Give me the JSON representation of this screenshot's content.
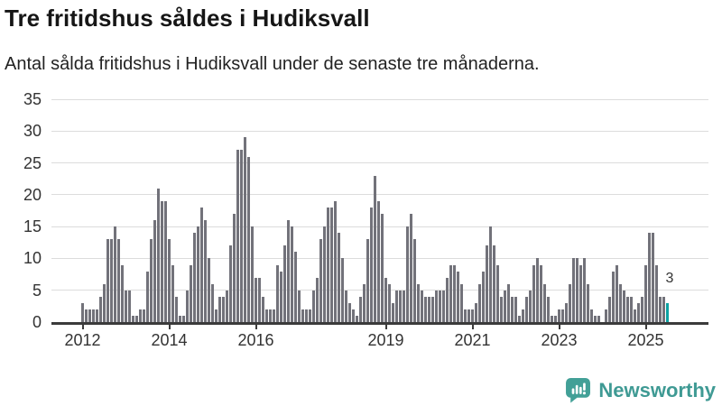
{
  "header": {
    "title": "Tre fritidshus såldes i Hudiksvall",
    "subtitle": "Antal sålda fritidshus i Hudiksvall under de senaste tre månaderna."
  },
  "chart_data": {
    "type": "bar",
    "title": "Tre fritidshus såldes i Hudiksvall",
    "subtitle": "Antal sålda fritidshus i Hudiksvall under de senaste tre månaderna.",
    "x_tick_labels": [
      "2012",
      "2014",
      "2016",
      "2019",
      "2021",
      "2023",
      "2025"
    ],
    "x_tick_month_indices": [
      0,
      24,
      48,
      84,
      108,
      132,
      156
    ],
    "y_ticks": [
      0,
      5,
      10,
      15,
      20,
      25,
      30,
      35
    ],
    "ylim": [
      0,
      35
    ],
    "grid": "horizontal",
    "start_label": "2012",
    "values": [
      3,
      2,
      2,
      2,
      2,
      4,
      6,
      13,
      13,
      15,
      13,
      9,
      5,
      5,
      1,
      1,
      2,
      2,
      8,
      13,
      16,
      21,
      19,
      19,
      13,
      9,
      4,
      1,
      1,
      5,
      9,
      14,
      15,
      18,
      16,
      10,
      6,
      2,
      4,
      4,
      5,
      12,
      17,
      27,
      27,
      29,
      26,
      15,
      7,
      7,
      4,
      2,
      2,
      2,
      9,
      8,
      12,
      16,
      15,
      11,
      5,
      2,
      2,
      2,
      5,
      7,
      13,
      15,
      18,
      18,
      19,
      14,
      10,
      5,
      3,
      2,
      1,
      4,
      6,
      13,
      18,
      23,
      19,
      17,
      7,
      6,
      3,
      5,
      5,
      5,
      15,
      17,
      13,
      6,
      5,
      4,
      4,
      4,
      5,
      5,
      5,
      7,
      9,
      9,
      8,
      6,
      2,
      2,
      2,
      3,
      6,
      8,
      12,
      15,
      12,
      9,
      4,
      5,
      6,
      4,
      4,
      1,
      2,
      4,
      5,
      9,
      10,
      9,
      6,
      4,
      1,
      1,
      2,
      2,
      3,
      6,
      10,
      10,
      9,
      10,
      6,
      2,
      1,
      1,
      0,
      2,
      4,
      8,
      9,
      6,
      5,
      4,
      4,
      2,
      3,
      4,
      9,
      14,
      14,
      9,
      4,
      4,
      3
    ],
    "highlight": {
      "index": 162,
      "value": 3,
      "label": "3",
      "color": "#0da3a3"
    },
    "bar_color": "#72727a"
  },
  "annotation": {
    "last_value_label": "3"
  },
  "colors": {
    "bar": "#72727a",
    "highlight": "#0da3a3",
    "axis": "#3b3b3b",
    "gridline": "#dcdcdc",
    "tick_text": "#333333",
    "brand": "#3f9a94"
  },
  "footer": {
    "brand": "Newsworthy"
  }
}
